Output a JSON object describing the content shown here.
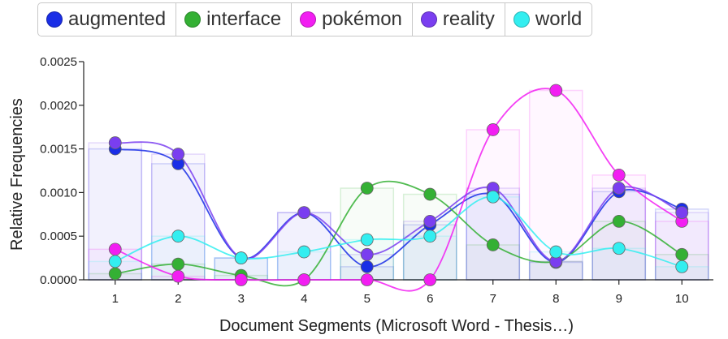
{
  "chart_data": {
    "type": "line",
    "xlabel": "Document Segments (Microsoft Word - Thesis…)",
    "ylabel": "Relative Frequencies",
    "ylim": [
      0,
      0.0025
    ],
    "yticks": [
      "0.0000",
      "0.0005",
      "0.0010",
      "0.0015",
      "0.0020",
      "0.0025"
    ],
    "categories": [
      "1",
      "2",
      "3",
      "4",
      "5",
      "6",
      "7",
      "8",
      "9",
      "10"
    ],
    "legend_position": "top",
    "grid": false,
    "series": [
      {
        "name": "augmented",
        "color": "#1a2ee6",
        "values": [
          0.0015,
          0.00133,
          0.00025,
          0.00077,
          0.00015,
          0.00063,
          0.00098,
          0.0002,
          0.00101,
          0.00081
        ]
      },
      {
        "name": "interface",
        "color": "#34b034",
        "values": [
          7e-05,
          0.00018,
          5e-05,
          0.0,
          0.00105,
          0.00098,
          0.0004,
          0.00021,
          0.00067,
          0.00029
        ]
      },
      {
        "name": "pokémon",
        "color": "#f21ef2",
        "values": [
          0.00035,
          4e-05,
          0.0,
          0.0,
          0.0,
          0.0,
          0.00172,
          0.00217,
          0.0012,
          0.00067
        ]
      },
      {
        "name": "reality",
        "color": "#7a3ef0",
        "values": [
          0.00157,
          0.00144,
          0.00025,
          0.00077,
          0.00029,
          0.00067,
          0.00105,
          0.00021,
          0.00105,
          0.00077
        ]
      },
      {
        "name": "world",
        "color": "#33eef0",
        "values": [
          0.00021,
          0.0005,
          0.00025,
          0.00032,
          0.00046,
          0.0005,
          0.00095,
          0.00032,
          0.00036,
          0.00015
        ]
      }
    ]
  }
}
